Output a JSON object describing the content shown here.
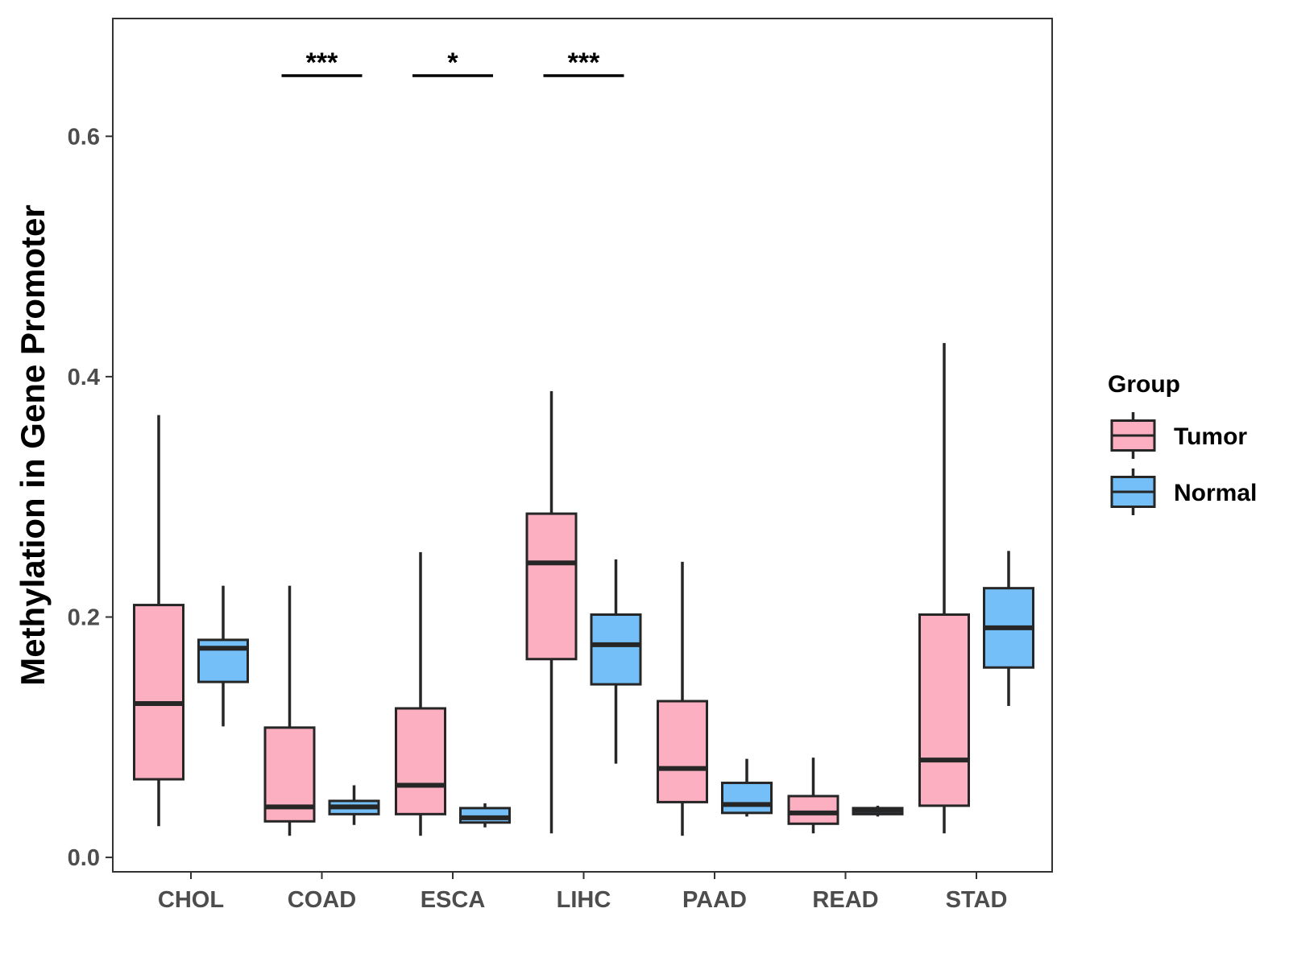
{
  "chart_data": {
    "type": "boxplot",
    "title": "",
    "xlabel": "",
    "ylabel": "Methylation in Gene Promoter",
    "ylim": [
      -0.012,
      0.698
    ],
    "yticks": [
      0.0,
      0.2,
      0.4,
      0.6
    ],
    "ytick_labels": [
      "0.0",
      "0.2",
      "0.4",
      "0.6"
    ],
    "categories": [
      "CHOL",
      "COAD",
      "ESCA",
      "LIHC",
      "PAAD",
      "READ",
      "STAD"
    ],
    "grid": false,
    "legend": {
      "title": "Group",
      "position": "right",
      "entries": [
        "Tumor",
        "Normal"
      ]
    },
    "series": [
      {
        "name": "Tumor",
        "color": "#FBAFC0",
        "boxes": [
          {
            "category": "CHOL",
            "min": 0.026,
            "q1": 0.065,
            "median": 0.128,
            "q3": 0.21,
            "max": 0.368
          },
          {
            "category": "COAD",
            "min": 0.018,
            "q1": 0.03,
            "median": 0.042,
            "q3": 0.108,
            "max": 0.226
          },
          {
            "category": "ESCA",
            "min": 0.018,
            "q1": 0.036,
            "median": 0.06,
            "q3": 0.124,
            "max": 0.254
          },
          {
            "category": "LIHC",
            "min": 0.02,
            "q1": 0.165,
            "median": 0.245,
            "q3": 0.286,
            "max": 0.388
          },
          {
            "category": "PAAD",
            "min": 0.018,
            "q1": 0.046,
            "median": 0.074,
            "q3": 0.13,
            "max": 0.246
          },
          {
            "category": "READ",
            "min": 0.02,
            "q1": 0.028,
            "median": 0.037,
            "q3": 0.051,
            "max": 0.083
          },
          {
            "category": "STAD",
            "min": 0.02,
            "q1": 0.043,
            "median": 0.081,
            "q3": 0.202,
            "max": 0.428
          }
        ]
      },
      {
        "name": "Normal",
        "color": "#74BFF7",
        "boxes": [
          {
            "category": "CHOL",
            "min": 0.109,
            "q1": 0.146,
            "median": 0.174,
            "q3": 0.181,
            "max": 0.226
          },
          {
            "category": "COAD",
            "min": 0.027,
            "q1": 0.036,
            "median": 0.042,
            "q3": 0.047,
            "max": 0.06
          },
          {
            "category": "ESCA",
            "min": 0.025,
            "q1": 0.029,
            "median": 0.033,
            "q3": 0.041,
            "max": 0.045
          },
          {
            "category": "LIHC",
            "min": 0.078,
            "q1": 0.144,
            "median": 0.177,
            "q3": 0.202,
            "max": 0.248
          },
          {
            "category": "PAAD",
            "min": 0.034,
            "q1": 0.037,
            "median": 0.044,
            "q3": 0.062,
            "max": 0.082
          },
          {
            "category": "READ",
            "min": 0.034,
            "q1": 0.036,
            "median": 0.039,
            "q3": 0.041,
            "max": 0.043
          },
          {
            "category": "STAD",
            "min": 0.126,
            "q1": 0.158,
            "median": 0.191,
            "q3": 0.224,
            "max": 0.255
          }
        ]
      }
    ],
    "annotations": [
      {
        "category": "COAD",
        "label": "***"
      },
      {
        "category": "ESCA",
        "label": "*"
      },
      {
        "category": "LIHC",
        "label": "***"
      }
    ]
  }
}
